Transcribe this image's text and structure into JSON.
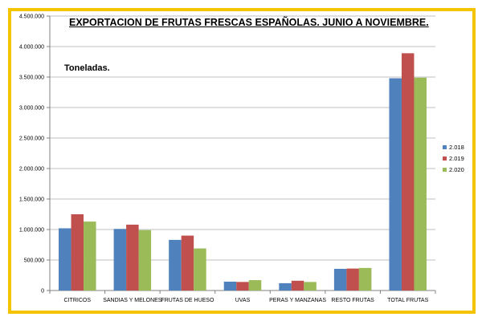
{
  "chart_data": {
    "type": "bar",
    "title": "EXPORTACION DE FRUTAS FRESCAS ESPAÑOLAS. JUNIO A NOVIEMBRE.",
    "ylabel": "Toneladas.",
    "xlabel": "",
    "categories": [
      "CITRICOS",
      "SANDIAS Y MELONES",
      "FRUTAS DE HUESO",
      "UVAS",
      "PERAS Y MANZANAS",
      "RESTO FRUTAS",
      "TOTAL FRUTAS"
    ],
    "series": [
      {
        "name": "2.018",
        "color": "#4f81bd",
        "values": [
          1020000,
          1010000,
          830000,
          145000,
          120000,
          355000,
          3480000
        ]
      },
      {
        "name": "2.019",
        "color": "#c0504d",
        "values": [
          1250000,
          1080000,
          900000,
          140000,
          160000,
          360000,
          3890000
        ]
      },
      {
        "name": "2.020",
        "color": "#9bbb59",
        "values": [
          1130000,
          990000,
          690000,
          170000,
          140000,
          370000,
          3490000
        ]
      }
    ],
    "ylim": [
      0,
      4500000
    ],
    "yticks": [
      "0",
      "500.000",
      "1.000.000",
      "1.500.000",
      "2.000.000",
      "2.500.000",
      "3.000.000",
      "3.500.000",
      "4.000.000",
      "4.500.000"
    ],
    "grid": true,
    "legend_position": "right",
    "frame_color": "#f5c400"
  }
}
